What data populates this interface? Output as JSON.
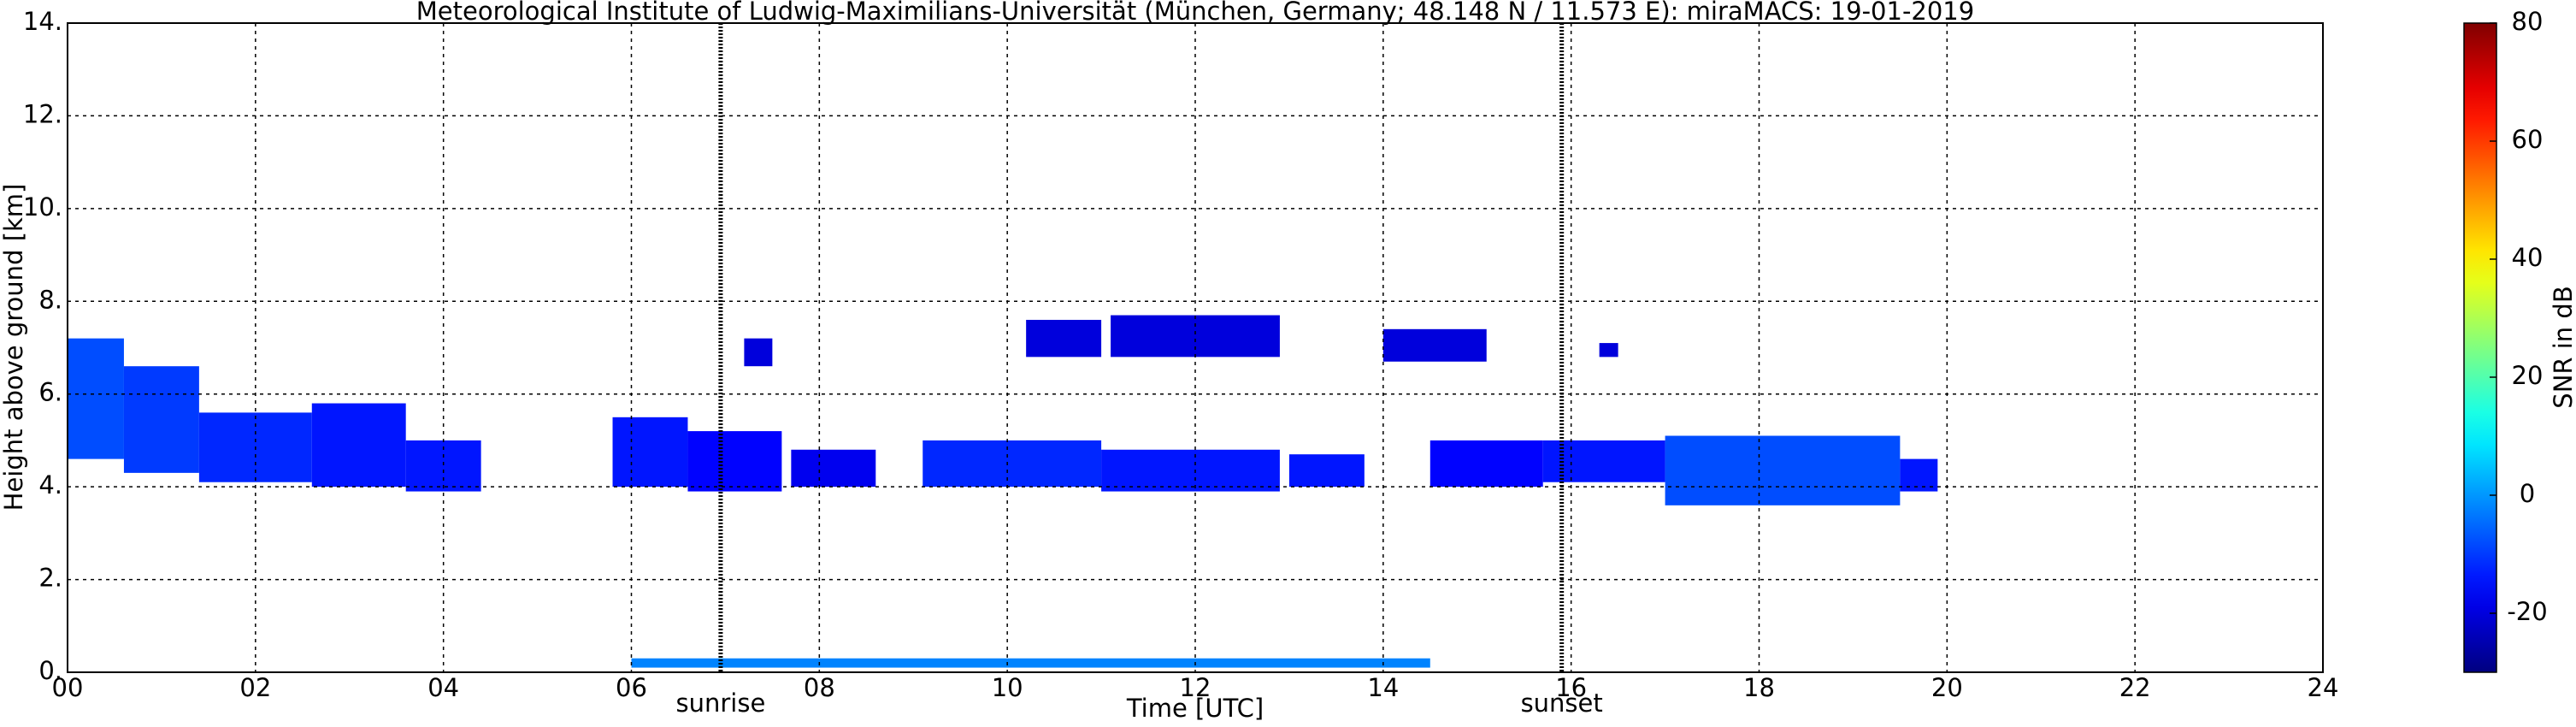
{
  "chart_data": {
    "type": "heatmap",
    "title": "Meteorological Institute of Ludwig-Maximilians-Universität (München, Germany; 48.148 N / 11.573 E):    miraMACS: 19-01-2019",
    "xlabel": "Time [UTC]",
    "ylabel": "Height above ground [km]",
    "colorbar_label": "SNR in dB",
    "xlim": [
      0,
      24
    ],
    "xticks": [
      {
        "value": 0,
        "label": "00"
      },
      {
        "value": 2,
        "label": "02"
      },
      {
        "value": 4,
        "label": "04"
      },
      {
        "value": 6,
        "label": "06"
      },
      {
        "value": 8,
        "label": "08"
      },
      10,
      12,
      14,
      16,
      18,
      20,
      22,
      24
    ],
    "ylim": [
      0,
      14
    ],
    "yticks": [
      {
        "value": 0,
        "label": "0."
      },
      {
        "value": 2,
        "label": "2."
      },
      {
        "value": 4,
        "label": "4."
      },
      {
        "value": 6,
        "label": "6."
      },
      {
        "value": 8,
        "label": "8."
      },
      {
        "value": 10,
        "label": "10."
      },
      {
        "value": 12,
        "label": "12."
      },
      {
        "value": 14,
        "label": "14."
      }
    ],
    "clim": [
      -30,
      80
    ],
    "cticks": [
      -20,
      0,
      20,
      40,
      60,
      80
    ],
    "colormap": "jet",
    "grid": true,
    "annotations": [
      {
        "x": 6.95,
        "label": "sunrise"
      },
      {
        "x": 15.9,
        "label": "sunset"
      }
    ],
    "regions": [
      {
        "x": [
          0,
          0.6
        ],
        "y": [
          4.6,
          7.2
        ],
        "snr": -8
      },
      {
        "x": [
          0.6,
          1.4
        ],
        "y": [
          4.3,
          6.6
        ],
        "snr": -10
      },
      {
        "x": [
          1.4,
          2.6
        ],
        "y": [
          4.1,
          5.6
        ],
        "snr": -12
      },
      {
        "x": [
          2.6,
          3.6
        ],
        "y": [
          4.0,
          5.8
        ],
        "snr": -14
      },
      {
        "x": [
          3.6,
          4.4
        ],
        "y": [
          3.9,
          5.0
        ],
        "snr": -14
      },
      {
        "x": [
          5.8,
          6.6
        ],
        "y": [
          4.0,
          5.5
        ],
        "snr": -14
      },
      {
        "x": [
          6.6,
          7.6
        ],
        "y": [
          3.9,
          5.2
        ],
        "snr": -16
      },
      {
        "x": [
          7.7,
          8.6
        ],
        "y": [
          4.0,
          4.8
        ],
        "snr": -18
      },
      {
        "x": [
          9.1,
          11.0
        ],
        "y": [
          4.0,
          5.0
        ],
        "snr": -12
      },
      {
        "x": [
          11.0,
          12.9
        ],
        "y": [
          3.9,
          4.8
        ],
        "snr": -14
      },
      {
        "x": [
          13.0,
          13.8
        ],
        "y": [
          4.0,
          4.7
        ],
        "snr": -14
      },
      {
        "x": [
          14.5,
          15.7
        ],
        "y": [
          4.0,
          5.0
        ],
        "snr": -16
      },
      {
        "x": [
          15.7,
          17.0
        ],
        "y": [
          4.1,
          5.0
        ],
        "snr": -14
      },
      {
        "x": [
          17.0,
          19.5
        ],
        "y": [
          3.6,
          5.1
        ],
        "snr": -8
      },
      {
        "x": [
          19.5,
          19.9
        ],
        "y": [
          3.9,
          4.6
        ],
        "snr": -14
      },
      {
        "x": [
          7.2,
          7.5
        ],
        "y": [
          6.6,
          7.2
        ],
        "snr": -20
      },
      {
        "x": [
          10.2,
          11.0
        ],
        "y": [
          6.8,
          7.6
        ],
        "snr": -20
      },
      {
        "x": [
          11.1,
          12.9
        ],
        "y": [
          6.8,
          7.7
        ],
        "snr": -20
      },
      {
        "x": [
          14.0,
          15.1
        ],
        "y": [
          6.7,
          7.4
        ],
        "snr": -20
      },
      {
        "x": [
          16.3,
          16.5
        ],
        "y": [
          6.8,
          7.1
        ],
        "snr": -20
      },
      {
        "x": [
          6.0,
          14.5
        ],
        "y": [
          0.1,
          0.3
        ],
        "snr": -2
      }
    ]
  }
}
